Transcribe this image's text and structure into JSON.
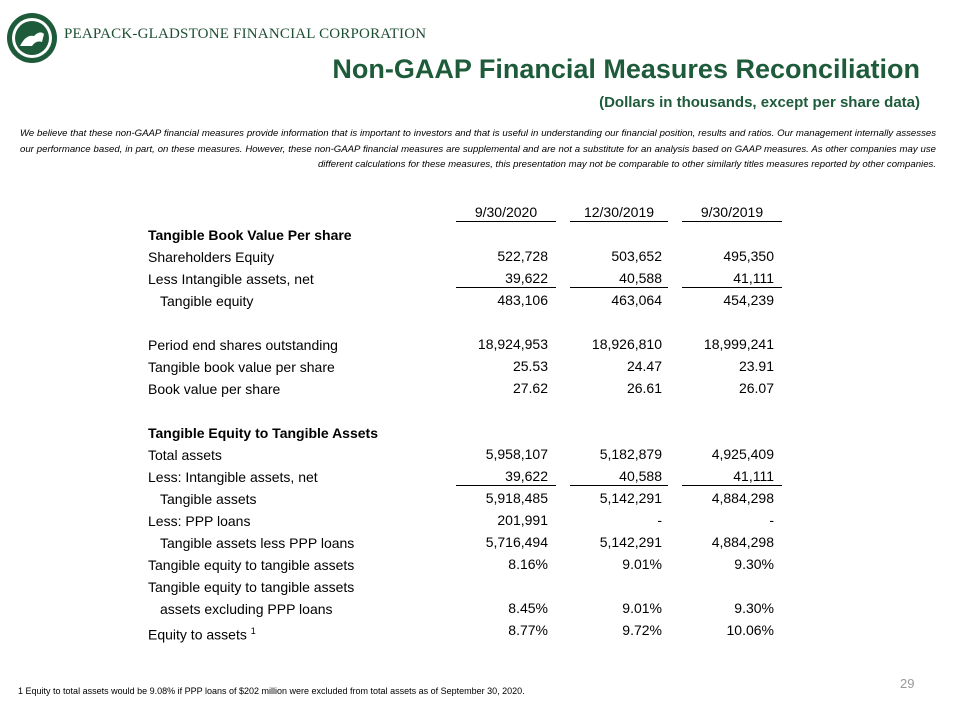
{
  "header": {
    "company": "PEAPACK-GLADSTONE FINANCIAL CORPORATION",
    "title": "Non-GAAP Financial Measures Reconciliation",
    "subtitle": "(Dollars in thousands, except per share data)"
  },
  "disclaimer": "We believe that these non-GAAP financial measures provide information that is important to investors and that is useful in understanding our financial position, results and ratios.  Our management internally assesses our performance based, in part, on these measures.  However, these non-GAAP financial measures are supplemental and are not a substitute for an analysis based on GAAP measures.  As other companies may use different calculations for these measures, this presentation may not be comparable to other similarly titles measures reported by other companies.",
  "table": {
    "columns": [
      "9/30/2020",
      "12/30/2019",
      "9/30/2019"
    ],
    "sections": [
      {
        "title": "Tangible Book Value Per share",
        "rows": [
          {
            "label": "Shareholders Equity",
            "values": [
              "522,728",
              "503,652",
              "495,350"
            ]
          },
          {
            "label": "Less Intangible assets, net",
            "values": [
              "39,622",
              "40,588",
              "41,111"
            ],
            "underline": true
          },
          {
            "label": "Tangible equity",
            "values": [
              "483,106",
              "463,064",
              "454,239"
            ],
            "indent": true
          }
        ]
      },
      {
        "rows": [
          {
            "label": "Period end shares outstanding",
            "values": [
              "18,924,953",
              "18,926,810",
              "18,999,241"
            ]
          },
          {
            "label": "Tangible book value per share",
            "values": [
              "25.53",
              "24.47",
              "23.91"
            ]
          },
          {
            "label": "Book value per share",
            "values": [
              "27.62",
              "26.61",
              "26.07"
            ]
          }
        ]
      },
      {
        "title": "Tangible Equity to Tangible Assets",
        "rows": [
          {
            "label": "Total assets",
            "values": [
              "5,958,107",
              "5,182,879",
              "4,925,409"
            ]
          },
          {
            "label": "Less: Intangible assets, net",
            "values": [
              "39,622",
              "40,588",
              "41,111"
            ],
            "underline": true
          },
          {
            "label": "Tangible assets",
            "values": [
              "5,918,485",
              "5,142,291",
              "4,884,298"
            ],
            "indent": true
          },
          {
            "label": "Less: PPP loans",
            "values": [
              "201,991",
              "-",
              "-"
            ]
          },
          {
            "label": "Tangible assets less PPP loans",
            "values": [
              "5,716,494",
              "5,142,291",
              "4,884,298"
            ],
            "indent": true
          },
          {
            "label": "Tangible equity to tangible assets",
            "values": [
              "8.16%",
              "9.01%",
              "9.30%"
            ]
          },
          {
            "label": "Tangible equity to tangible assets"
          },
          {
            "label": "assets excluding PPP loans",
            "values": [
              "8.45%",
              "9.01%",
              "9.30%"
            ],
            "indent": true
          },
          {
            "label": "Equity to assets",
            "note": "1",
            "values": [
              "8.77%",
              "9.72%",
              "10.06%"
            ]
          }
        ]
      }
    ]
  },
  "footnote": {
    "marker": "1",
    "text": "Equity to total assets would be 9.08% if PPP loans of $202 million were excluded from total assets as of September 30, 2020."
  },
  "page_number": "29"
}
